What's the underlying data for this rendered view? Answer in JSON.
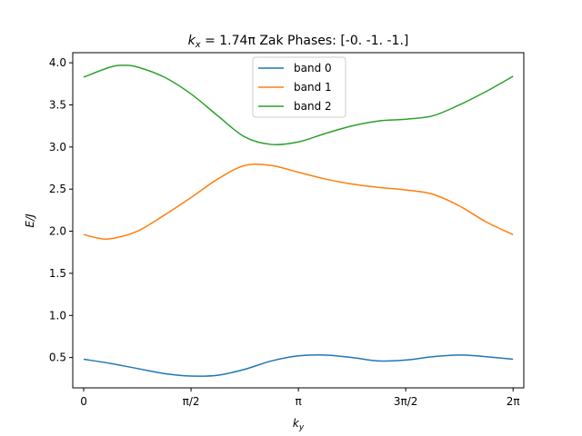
{
  "chart_data": {
    "type": "line",
    "title": "k_x = 1.74π Zak Phases: [-0. -1. -1.]",
    "title_parts": {
      "k": "k",
      "sub": "x",
      "value": " = 1.74π",
      "rest": " Zak Phases: [-0. -1. -1.]"
    },
    "xlabel": "k_y",
    "xlabel_parts": {
      "k": "k",
      "sub": "y"
    },
    "ylabel": "E/J",
    "xlim": [
      -0.16,
      6.44
    ],
    "ylim": [
      0.14,
      4.12
    ],
    "xticks": [
      0,
      1.5708,
      3.1416,
      4.7124,
      6.2832
    ],
    "xtick_labels": [
      "0",
      "π/2",
      "π",
      "3π/2",
      "2π"
    ],
    "yticks": [
      0.5,
      1.0,
      1.5,
      2.0,
      2.5,
      3.0,
      3.5,
      4.0
    ],
    "ytick_labels": [
      "0.5",
      "1.0",
      "1.5",
      "2.0",
      "2.5",
      "3.0",
      "3.5",
      "4.0"
    ],
    "grid": false,
    "legend_position": "top-center",
    "series": [
      {
        "name": "band 0",
        "color": "#1f77b4",
        "x": [
          0,
          0.393,
          0.785,
          1.178,
          1.571,
          1.963,
          2.356,
          2.749,
          3.142,
          3.534,
          3.927,
          4.32,
          4.712,
          5.105,
          5.498,
          5.89,
          6.283
        ],
        "y": [
          0.48,
          0.43,
          0.37,
          0.31,
          0.28,
          0.29,
          0.36,
          0.46,
          0.52,
          0.53,
          0.5,
          0.46,
          0.47,
          0.51,
          0.53,
          0.51,
          0.48
        ]
      },
      {
        "name": "band 1",
        "color": "#ff7f0e",
        "x": [
          0,
          0.2,
          0.393,
          0.785,
          1.178,
          1.571,
          1.963,
          2.356,
          2.749,
          3.142,
          3.534,
          3.927,
          4.32,
          4.712,
          5.105,
          5.498,
          5.89,
          6.283
        ],
        "y": [
          1.96,
          1.92,
          1.91,
          2.0,
          2.19,
          2.4,
          2.62,
          2.78,
          2.78,
          2.7,
          2.62,
          2.56,
          2.52,
          2.49,
          2.44,
          2.3,
          2.11,
          1.96
        ]
      },
      {
        "name": "band 2",
        "color": "#2ca02c",
        "x": [
          0,
          0.393,
          0.589,
          0.785,
          1.178,
          1.571,
          1.963,
          2.356,
          2.749,
          3.142,
          3.534,
          3.927,
          4.32,
          4.712,
          5.105,
          5.498,
          5.89,
          6.283
        ],
        "y": [
          3.83,
          3.95,
          3.97,
          3.95,
          3.83,
          3.63,
          3.37,
          3.12,
          3.03,
          3.06,
          3.16,
          3.25,
          3.31,
          3.33,
          3.37,
          3.5,
          3.66,
          3.84
        ]
      }
    ]
  }
}
